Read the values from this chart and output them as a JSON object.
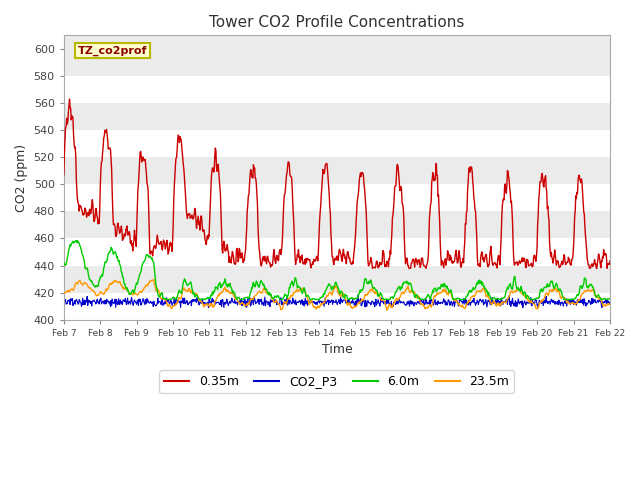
{
  "title": "Tower CO2 Profile Concentrations",
  "xlabel": "Time",
  "ylabel": "CO2 (ppm)",
  "ylim": [
    400,
    610
  ],
  "yticks": [
    400,
    420,
    440,
    460,
    480,
    500,
    520,
    540,
    560,
    580,
    600
  ],
  "fig_bg_color": "#ffffff",
  "plot_bg_color": "#ebebeb",
  "legend_label": "TZ_co2prof",
  "legend_bg": "#ffffcc",
  "legend_edge": "#b8b800",
  "series_colors": {
    "0.35m": "#cc0000",
    "CO2_P3": "#0000cc",
    "6.0m": "#00cc00",
    "23.5m": "#ff9900"
  },
  "xtick_labels": [
    "Feb 7",
    "Feb 8",
    "Feb 9",
    "Feb 10",
    "Feb 11",
    "Feb 12",
    "Feb 13",
    "Feb 14",
    "Feb 15",
    "Feb 16",
    "Feb 17",
    "Feb 18",
    "Feb 19",
    "Feb 20",
    "Feb 21",
    "Feb 22"
  ],
  "n_points": 960
}
